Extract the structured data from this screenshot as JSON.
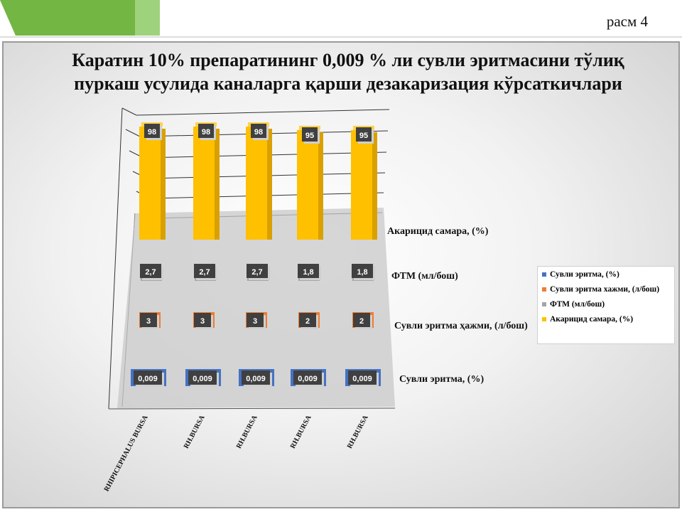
{
  "slide": {
    "label": "расм 4"
  },
  "colors": {
    "green": "#73b644",
    "green_light": "#9fd27c",
    "blue": "#4472c4",
    "orange": "#ed7d31",
    "gray": "#a5a5a5",
    "yellow": "#ffc000"
  },
  "chart_data": {
    "type": "bar",
    "title": "Каратин 10% препаратининг 0,009 % ли сувли эритмасини тўлиқ пуркаш усулида каналарга қарши дезакаризация кўрсаткичлари",
    "categories": [
      "RHIPICEPHALUS BURSA",
      "RH.BURSA",
      "RH.BURSA",
      "RH.BURSA",
      "RH.BURSA"
    ],
    "series": [
      {
        "name": "Сувли эритма, (%)",
        "values": [
          0.009,
          0.009,
          0.009,
          0.009,
          0.009
        ],
        "labels": [
          "0,009",
          "0,009",
          "0,009",
          "0,009",
          "0,009"
        ]
      },
      {
        "name": "Сувли эритма хажми, (л/бош)",
        "values": [
          3,
          3,
          3,
          2,
          2
        ],
        "labels": [
          "3",
          "3",
          "3",
          "2",
          "2"
        ]
      },
      {
        "name": "ФТМ (мл/бош)",
        "values": [
          2.7,
          2.7,
          2.7,
          1.8,
          1.8
        ],
        "labels": [
          "2,7",
          "2,7",
          "2,7",
          "1,8",
          "1,8"
        ]
      },
      {
        "name": "Акарицид самара, (%)",
        "values": [
          98,
          98,
          98,
          95,
          95
        ],
        "labels": [
          "98",
          "98",
          "98",
          "95",
          "95"
        ]
      }
    ],
    "depth_axis_labels": [
      "Сувли эритма, (%)",
      "Сувли эритма ҳажми, (л/бош)",
      "ФТМ (мл/бош)",
      "Акарицид самара, (%)"
    ],
    "legend": {
      "position": "right",
      "entries": [
        "Сувли эритма, (%)",
        "Сувли эритма хажми, (л/бош)",
        "ФТМ (мл/бош)",
        "Акарицид самара, (%)"
      ]
    },
    "grid": true,
    "ylim": [
      0,
      100
    ]
  }
}
